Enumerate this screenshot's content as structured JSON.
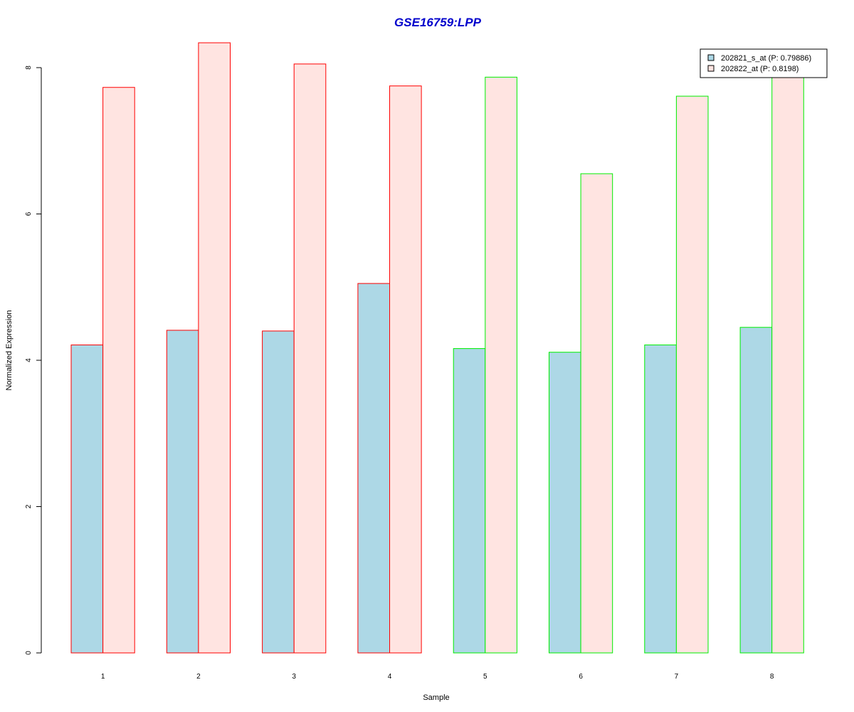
{
  "chart_data": {
    "type": "bar",
    "title": "GSE16759:LPP",
    "title_color": "#0000CC",
    "xlabel": "Sample",
    "ylabel": "Normalized Expression",
    "categories": [
      "1",
      "2",
      "3",
      "4",
      "5",
      "6",
      "7",
      "8"
    ],
    "y_ticks": [
      "0",
      "2",
      "4",
      "6",
      "8"
    ],
    "ylim": [
      0,
      8.4
    ],
    "grid": false,
    "legend_position": "top-right",
    "series": [
      {
        "name": "202821_s_at (P: 0.79886)",
        "fill": "#ADD8E6",
        "values": [
          4.21,
          4.41,
          4.4,
          5.05,
          4.16,
          4.11,
          4.21,
          4.45
        ]
      },
      {
        "name": "202822_at (P: 0.8198)",
        "fill": "#FFE4E1",
        "values": [
          7.73,
          8.34,
          8.05,
          7.75,
          7.87,
          6.55,
          7.61,
          8.05
        ]
      }
    ],
    "sample_group_colors": [
      "#FF0000",
      "#FF0000",
      "#FF0000",
      "#FF0000",
      "#00EE00",
      "#00EE00",
      "#00EE00",
      "#00EE00"
    ]
  }
}
